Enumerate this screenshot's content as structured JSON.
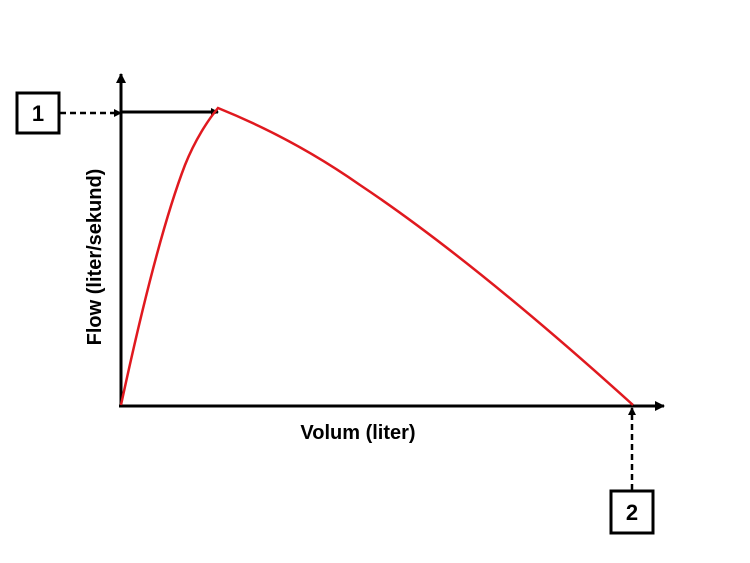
{
  "diagram": {
    "x_axis_label": "Volum (liter)",
    "y_axis_label": "Flow (liter/sekund)",
    "markers": [
      {
        "label": "1"
      },
      {
        "label": "2"
      }
    ],
    "colors": {
      "curve": "#e0191f",
      "axes": "#000000"
    }
  }
}
